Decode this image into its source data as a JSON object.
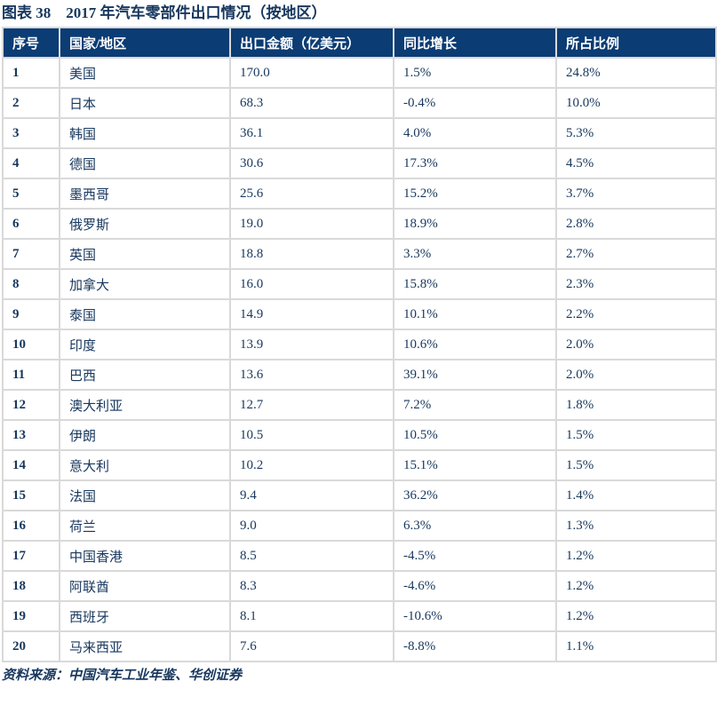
{
  "colors": {
    "header_bg": "#0B3C74",
    "text_navy": "#17375E",
    "border": "#D9D9D9"
  },
  "chart_data": {
    "type": "table",
    "title": "图表 38　2017 年汽车零部件出口情况（按地区）",
    "columns": [
      "序号",
      "国家/地区",
      "出口金额（亿美元）",
      "同比增长",
      "所占比例"
    ],
    "rows": [
      {
        "rank": "1",
        "region": "美国",
        "amount": "170.0",
        "yoy": "1.5%",
        "share": "24.8%"
      },
      {
        "rank": "2",
        "region": "日本",
        "amount": "68.3",
        "yoy": "-0.4%",
        "share": "10.0%"
      },
      {
        "rank": "3",
        "region": "韩国",
        "amount": "36.1",
        "yoy": "4.0%",
        "share": "5.3%"
      },
      {
        "rank": "4",
        "region": "德国",
        "amount": "30.6",
        "yoy": "17.3%",
        "share": "4.5%"
      },
      {
        "rank": "5",
        "region": "墨西哥",
        "amount": "25.6",
        "yoy": "15.2%",
        "share": "3.7%"
      },
      {
        "rank": "6",
        "region": "俄罗斯",
        "amount": "19.0",
        "yoy": "18.9%",
        "share": "2.8%"
      },
      {
        "rank": "7",
        "region": "英国",
        "amount": "18.8",
        "yoy": "3.3%",
        "share": "2.7%"
      },
      {
        "rank": "8",
        "region": "加拿大",
        "amount": "16.0",
        "yoy": "15.8%",
        "share": "2.3%"
      },
      {
        "rank": "9",
        "region": "泰国",
        "amount": "14.9",
        "yoy": "10.1%",
        "share": "2.2%"
      },
      {
        "rank": "10",
        "region": "印度",
        "amount": "13.9",
        "yoy": "10.6%",
        "share": "2.0%"
      },
      {
        "rank": "11",
        "region": "巴西",
        "amount": "13.6",
        "yoy": "39.1%",
        "share": "2.0%"
      },
      {
        "rank": "12",
        "region": "澳大利亚",
        "amount": "12.7",
        "yoy": "7.2%",
        "share": "1.8%"
      },
      {
        "rank": "13",
        "region": "伊朗",
        "amount": "10.5",
        "yoy": "10.5%",
        "share": "1.5%"
      },
      {
        "rank": "14",
        "region": "意大利",
        "amount": "10.2",
        "yoy": "15.1%",
        "share": "1.5%"
      },
      {
        "rank": "15",
        "region": "法国",
        "amount": "9.4",
        "yoy": "36.2%",
        "share": "1.4%"
      },
      {
        "rank": "16",
        "region": "荷兰",
        "amount": "9.0",
        "yoy": "6.3%",
        "share": "1.3%"
      },
      {
        "rank": "17",
        "region": "中国香港",
        "amount": "8.5",
        "yoy": "-4.5%",
        "share": "1.2%"
      },
      {
        "rank": "18",
        "region": "阿联酋",
        "amount": "8.3",
        "yoy": "-4.6%",
        "share": "1.2%"
      },
      {
        "rank": "19",
        "region": "西班牙",
        "amount": "8.1",
        "yoy": "-10.6%",
        "share": "1.2%"
      },
      {
        "rank": "20",
        "region": "马来西亚",
        "amount": "7.6",
        "yoy": "-8.8%",
        "share": "1.1%"
      }
    ],
    "source": "资料来源：中国汽车工业年鉴、华创证券"
  }
}
